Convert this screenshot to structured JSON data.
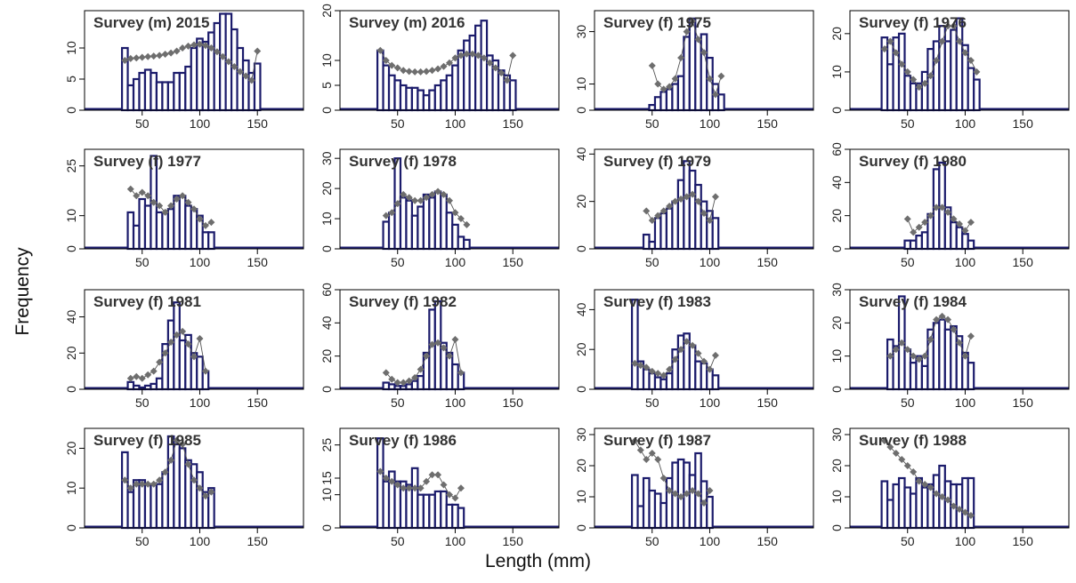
{
  "figure": {
    "xlabel": "Length (mm)",
    "ylabel": "Frequency",
    "colors": {
      "bar_border": "#1b1b6b",
      "bar_fill": "#ffffff",
      "point": "#6e6e6e",
      "line": "#555555"
    }
  },
  "chart_data": [
    {
      "type": "bar",
      "title": "Survey (m) 2015",
      "xlim": [
        0,
        190
      ],
      "ylim": [
        0,
        16
      ],
      "yticks": [
        0,
        5,
        10
      ],
      "xticks": [
        50,
        100,
        150
      ],
      "x": [
        35,
        40,
        45,
        50,
        55,
        60,
        65,
        70,
        75,
        80,
        85,
        90,
        95,
        100,
        105,
        110,
        115,
        120,
        125,
        130,
        135,
        140,
        145,
        150
      ],
      "observed": [
        10,
        4,
        5,
        6,
        6.5,
        6,
        4.5,
        4.5,
        4.5,
        6,
        6,
        7,
        10,
        11.5,
        11,
        12.5,
        14,
        15.5,
        15.5,
        13,
        10,
        8,
        6,
        7.5
      ],
      "predicted": [
        8,
        8.3,
        8.4,
        8.5,
        8.6,
        8.7,
        8.8,
        9,
        9.2,
        9.5,
        10,
        10.3,
        10.5,
        10.6,
        10.4,
        10,
        9.4,
        8.6,
        7.8,
        7,
        6.2,
        5.5,
        4.8,
        9.5
      ]
    },
    {
      "type": "bar",
      "title": "Survey (m) 2016",
      "xlim": [
        0,
        190
      ],
      "ylim": [
        0,
        20
      ],
      "yticks": [
        0,
        5,
        10,
        20
      ],
      "xticks": [
        50,
        100,
        150
      ],
      "x": [
        35,
        40,
        45,
        50,
        55,
        60,
        65,
        70,
        75,
        80,
        85,
        90,
        95,
        100,
        105,
        110,
        115,
        120,
        125,
        130,
        135,
        140,
        145,
        150
      ],
      "observed": [
        12,
        9,
        7,
        6,
        5,
        4.5,
        4.5,
        4,
        3,
        4,
        5,
        6,
        7,
        9,
        12,
        14,
        15,
        17,
        18,
        11,
        10,
        8,
        7,
        6
      ],
      "predicted": [
        12,
        10,
        9,
        8.5,
        8,
        7.8,
        7.7,
        7.7,
        7.8,
        8,
        8.3,
        8.8,
        9.5,
        10.5,
        11,
        11.3,
        11.3,
        11,
        10.5,
        9.5,
        8.5,
        7.5,
        6,
        11
      ]
    },
    {
      "type": "bar",
      "title": "Survey (f) 1975",
      "xlim": [
        0,
        190
      ],
      "ylim": [
        0,
        38
      ],
      "yticks": [
        0,
        10,
        30
      ],
      "xticks": [
        50,
        100,
        150
      ],
      "x": [
        50,
        55,
        60,
        65,
        70,
        75,
        80,
        85,
        90,
        95,
        100,
        105,
        110
      ],
      "observed": [
        2,
        5,
        7,
        8,
        10,
        13,
        28,
        35,
        27,
        29,
        20,
        10,
        6
      ],
      "predicted": [
        17,
        10,
        8,
        9,
        12,
        20,
        30,
        34,
        27,
        22,
        12,
        6,
        13
      ]
    },
    {
      "type": "bar",
      "title": "Survey (f) 1976",
      "xlim": [
        0,
        190
      ],
      "ylim": [
        0,
        26
      ],
      "yticks": [
        0,
        10,
        20
      ],
      "xticks": [
        50,
        100,
        150
      ],
      "x": [
        30,
        35,
        40,
        45,
        50,
        55,
        60,
        65,
        70,
        75,
        80,
        85,
        90,
        95,
        100,
        105,
        110
      ],
      "observed": [
        19,
        12,
        19,
        20,
        9,
        7,
        7,
        10,
        16,
        18,
        22,
        18,
        21,
        24,
        17,
        11,
        8
      ],
      "predicted": [
        16,
        18,
        15,
        12,
        10,
        8,
        6,
        7,
        9,
        13,
        18,
        22,
        22,
        18,
        15,
        13,
        10
      ]
    },
    {
      "type": "bar",
      "title": "Survey (f) 1977",
      "xlim": [
        0,
        190
      ],
      "ylim": [
        0,
        30
      ],
      "yticks": [
        0,
        10,
        25
      ],
      "xticks": [
        50,
        100,
        150
      ],
      "x": [
        40,
        45,
        50,
        55,
        60,
        65,
        70,
        75,
        80,
        85,
        90,
        95,
        100,
        105,
        110
      ],
      "observed": [
        11,
        7,
        15,
        13,
        28,
        11,
        11,
        12,
        16,
        16,
        13,
        12,
        10,
        5,
        5
      ],
      "predicted": [
        18,
        16,
        17,
        16,
        14,
        13,
        11,
        13,
        15,
        16,
        14,
        12,
        9,
        7,
        8
      ]
    },
    {
      "type": "bar",
      "title": "Survey (f) 1978",
      "xlim": [
        0,
        190
      ],
      "ylim": [
        0,
        33
      ],
      "yticks": [
        0,
        10,
        20,
        30
      ],
      "xticks": [
        50,
        100,
        150
      ],
      "x": [
        40,
        45,
        50,
        55,
        60,
        65,
        70,
        75,
        80,
        85,
        90,
        95,
        100,
        105,
        110
      ],
      "observed": [
        9,
        12,
        30,
        17,
        16,
        11,
        14,
        18,
        17,
        19,
        18,
        12,
        8,
        4,
        3
      ],
      "predicted": [
        11,
        12,
        15,
        18,
        17,
        16,
        16,
        17,
        18,
        19,
        18,
        16,
        12,
        10,
        8
      ]
    },
    {
      "type": "bar",
      "title": "Survey (f) 1979",
      "xlim": [
        0,
        190
      ],
      "ylim": [
        0,
        42
      ],
      "yticks": [
        0,
        20,
        40
      ],
      "xticks": [
        50,
        100,
        150
      ],
      "x": [
        45,
        50,
        55,
        60,
        65,
        70,
        75,
        80,
        85,
        90,
        95,
        100,
        105
      ],
      "observed": [
        6,
        3,
        13,
        15,
        17,
        20,
        29,
        37,
        33,
        27,
        20,
        16,
        13
      ],
      "predicted": [
        16,
        12,
        14,
        16,
        18,
        20,
        21,
        22,
        23,
        20,
        15,
        12,
        22
      ]
    },
    {
      "type": "bar",
      "title": "Survey (f) 1980",
      "xlim": [
        0,
        190
      ],
      "ylim": [
        0,
        60
      ],
      "yticks": [
        0,
        20,
        40,
        60
      ],
      "xticks": [
        50,
        100,
        150
      ],
      "x": [
        50,
        55,
        60,
        65,
        70,
        75,
        80,
        85,
        90,
        95,
        100,
        105
      ],
      "observed": [
        5,
        5,
        8,
        10,
        21,
        48,
        52,
        25,
        16,
        13,
        9,
        5
      ],
      "predicted": [
        18,
        10,
        13,
        16,
        20,
        25,
        25,
        22,
        18,
        15,
        11,
        16
      ]
    },
    {
      "type": "bar",
      "title": "Survey (f) 1981",
      "xlim": [
        0,
        190
      ],
      "ylim": [
        0,
        55
      ],
      "yticks": [
        0,
        20,
        40
      ],
      "xticks": [
        50,
        100,
        150
      ],
      "x": [
        40,
        45,
        50,
        55,
        60,
        65,
        70,
        75,
        80,
        85,
        90,
        95,
        100,
        105
      ],
      "observed": [
        4,
        2,
        1,
        2,
        3,
        6,
        25,
        38,
        48,
        27,
        30,
        20,
        18,
        10
      ],
      "predicted": [
        6,
        7,
        6,
        8,
        10,
        15,
        20,
        26,
        30,
        32,
        25,
        18,
        28,
        10
      ]
    },
    {
      "type": "bar",
      "title": "Survey (f) 1982",
      "xlim": [
        0,
        190
      ],
      "ylim": [
        0,
        60
      ],
      "yticks": [
        0,
        20,
        40,
        60
      ],
      "xticks": [
        50,
        100,
        150
      ],
      "x": [
        40,
        45,
        50,
        55,
        60,
        65,
        70,
        75,
        80,
        85,
        90,
        95,
        100,
        105
      ],
      "observed": [
        4,
        3,
        2,
        2,
        3,
        5,
        8,
        22,
        48,
        53,
        28,
        22,
        15,
        10
      ],
      "predicted": [
        10,
        6,
        4,
        4,
        5,
        7,
        12,
        20,
        27,
        28,
        25,
        20,
        30,
        10
      ]
    },
    {
      "type": "bar",
      "title": "Survey (f) 1983",
      "xlim": [
        0,
        190
      ],
      "ylim": [
        0,
        50
      ],
      "yticks": [
        0,
        20,
        40
      ],
      "xticks": [
        50,
        100,
        150
      ],
      "x": [
        35,
        40,
        45,
        50,
        55,
        60,
        65,
        70,
        75,
        80,
        85,
        90,
        95,
        100,
        105
      ],
      "observed": [
        45,
        14,
        10,
        8,
        6,
        5,
        8,
        20,
        27,
        28,
        22,
        14,
        13,
        10,
        7
      ],
      "predicted": [
        13,
        12,
        11,
        9,
        8,
        7,
        10,
        15,
        20,
        24,
        22,
        18,
        14,
        10,
        17
      ]
    },
    {
      "type": "bar",
      "title": "Survey (f) 1984",
      "xlim": [
        0,
        190
      ],
      "ylim": [
        0,
        30
      ],
      "yticks": [
        0,
        10,
        20,
        30
      ],
      "xticks": [
        50,
        100,
        150
      ],
      "x": [
        35,
        40,
        45,
        50,
        55,
        60,
        65,
        70,
        75,
        80,
        85,
        90,
        95,
        100,
        105
      ],
      "observed": [
        15,
        13,
        28,
        12,
        8,
        10,
        7,
        18,
        20,
        21,
        18,
        19,
        16,
        11,
        8
      ],
      "predicted": [
        10,
        12,
        14,
        12,
        10,
        9,
        10,
        15,
        21,
        22,
        21,
        18,
        14,
        10,
        16
      ]
    },
    {
      "type": "bar",
      "title": "Survey (f) 1985",
      "xlim": [
        0,
        190
      ],
      "ylim": [
        0,
        25
      ],
      "yticks": [
        0,
        10,
        20
      ],
      "xticks": [
        50,
        100,
        150
      ],
      "x": [
        35,
        40,
        45,
        50,
        55,
        60,
        65,
        70,
        75,
        80,
        85,
        90,
        95,
        100,
        105,
        110
      ],
      "observed": [
        19,
        9,
        12,
        12,
        11,
        11,
        11,
        14,
        23,
        21,
        20,
        17,
        16,
        14,
        9,
        10
      ],
      "predicted": [
        12,
        10,
        11,
        11,
        11,
        11,
        12,
        14,
        17,
        22,
        21,
        16,
        12,
        10,
        8,
        9
      ]
    },
    {
      "type": "bar",
      "title": "Survey (f) 1986",
      "xlim": [
        0,
        190
      ],
      "ylim": [
        0,
        30
      ],
      "yticks": [
        0,
        10,
        15,
        25
      ],
      "xticks": [
        50,
        100,
        150
      ],
      "x": [
        35,
        40,
        45,
        50,
        55,
        60,
        65,
        70,
        75,
        80,
        85,
        90,
        95,
        100,
        105
      ],
      "observed": [
        27,
        14,
        17,
        14,
        14,
        13,
        18,
        10,
        10,
        10,
        11,
        11,
        7,
        7,
        6
      ],
      "predicted": [
        17,
        15,
        14,
        13,
        12,
        12,
        12,
        12,
        14,
        16,
        16,
        13,
        10,
        9,
        12
      ]
    },
    {
      "type": "bar",
      "title": "Survey (f) 1987",
      "xlim": [
        0,
        190
      ],
      "ylim": [
        0,
        32
      ],
      "yticks": [
        0,
        10,
        20,
        30
      ],
      "xticks": [
        50,
        100,
        150
      ],
      "x": [
        35,
        40,
        45,
        50,
        55,
        60,
        65,
        70,
        75,
        80,
        85,
        90,
        95,
        100
      ],
      "observed": [
        17,
        7,
        16,
        12,
        11,
        8,
        16,
        21,
        22,
        21,
        17,
        24,
        15,
        10
      ],
      "predicted": [
        28,
        25,
        22,
        24,
        22,
        16,
        12,
        11,
        10,
        11,
        12,
        11,
        8,
        12
      ]
    },
    {
      "type": "bar",
      "title": "Survey (f) 1988",
      "xlim": [
        0,
        190
      ],
      "ylim": [
        0,
        32
      ],
      "yticks": [
        0,
        10,
        20,
        30
      ],
      "xticks": [
        50,
        100,
        150
      ],
      "x": [
        30,
        35,
        40,
        45,
        50,
        55,
        60,
        65,
        70,
        75,
        80,
        85,
        90,
        95,
        100,
        105
      ],
      "observed": [
        15,
        9,
        14,
        16,
        13,
        11,
        16,
        13,
        14,
        17,
        20,
        15,
        14,
        14,
        16,
        16
      ],
      "predicted": [
        28,
        26,
        24,
        22,
        20,
        18,
        15,
        14,
        13,
        11,
        10,
        9,
        7,
        6,
        5,
        4
      ]
    }
  ]
}
